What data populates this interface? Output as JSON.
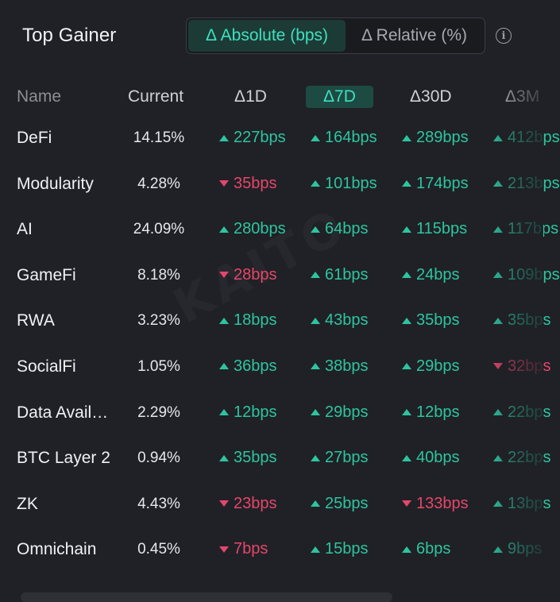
{
  "header": {
    "title": "Top Gainer",
    "toggle": {
      "active": "Δ Absolute (bps)",
      "inactive": "Δ Relative (%)"
    },
    "info_icon": "info-icon"
  },
  "table": {
    "columns": [
      "Name",
      "Current",
      "Δ1D",
      "Δ7D",
      "Δ30D",
      "Δ3M"
    ],
    "active_column": "Δ7D",
    "rows": [
      {
        "name": "DeFi",
        "current": "14.15%",
        "changes": [
          {
            "v": "227bps",
            "dir": "up"
          },
          {
            "v": "164bps",
            "dir": "up"
          },
          {
            "v": "289bps",
            "dir": "up"
          },
          {
            "v": "412bps",
            "dir": "up"
          }
        ]
      },
      {
        "name": "Modularity",
        "current": "4.28%",
        "changes": [
          {
            "v": "35bps",
            "dir": "down"
          },
          {
            "v": "101bps",
            "dir": "up"
          },
          {
            "v": "174bps",
            "dir": "up"
          },
          {
            "v": "213bps",
            "dir": "up"
          }
        ]
      },
      {
        "name": "AI",
        "current": "24.09%",
        "changes": [
          {
            "v": "280bps",
            "dir": "up"
          },
          {
            "v": "64bps",
            "dir": "up"
          },
          {
            "v": "115bps",
            "dir": "up"
          },
          {
            "v": "117bps",
            "dir": "up"
          }
        ]
      },
      {
        "name": "GameFi",
        "current": "8.18%",
        "changes": [
          {
            "v": "28bps",
            "dir": "down"
          },
          {
            "v": "61bps",
            "dir": "up"
          },
          {
            "v": "24bps",
            "dir": "up"
          },
          {
            "v": "109bps",
            "dir": "up"
          }
        ]
      },
      {
        "name": "RWA",
        "current": "3.23%",
        "changes": [
          {
            "v": "18bps",
            "dir": "up"
          },
          {
            "v": "43bps",
            "dir": "up"
          },
          {
            "v": "35bps",
            "dir": "up"
          },
          {
            "v": "35bps",
            "dir": "up"
          }
        ]
      },
      {
        "name": "SocialFi",
        "current": "1.05%",
        "changes": [
          {
            "v": "36bps",
            "dir": "up"
          },
          {
            "v": "38bps",
            "dir": "up"
          },
          {
            "v": "29bps",
            "dir": "up"
          },
          {
            "v": "32bps",
            "dir": "down"
          }
        ]
      },
      {
        "name": "Data Avail…",
        "current": "2.29%",
        "changes": [
          {
            "v": "12bps",
            "dir": "up"
          },
          {
            "v": "29bps",
            "dir": "up"
          },
          {
            "v": "12bps",
            "dir": "up"
          },
          {
            "v": "22bps",
            "dir": "up"
          }
        ]
      },
      {
        "name": "BTC Layer 2",
        "current": "0.94%",
        "changes": [
          {
            "v": "35bps",
            "dir": "up"
          },
          {
            "v": "27bps",
            "dir": "up"
          },
          {
            "v": "40bps",
            "dir": "up"
          },
          {
            "v": "22bps",
            "dir": "up"
          }
        ]
      },
      {
        "name": "ZK",
        "current": "4.43%",
        "changes": [
          {
            "v": "23bps",
            "dir": "down"
          },
          {
            "v": "25bps",
            "dir": "up"
          },
          {
            "v": "133bps",
            "dir": "down"
          },
          {
            "v": "13bps",
            "dir": "up"
          }
        ]
      },
      {
        "name": "Omnichain",
        "current": "0.45%",
        "changes": [
          {
            "v": "7bps",
            "dir": "down"
          },
          {
            "v": "15bps",
            "dir": "up"
          },
          {
            "v": "6bps",
            "dir": "up"
          },
          {
            "v": "9bps",
            "dir": "up"
          }
        ]
      }
    ]
  },
  "watermark": "KAITO",
  "colors": {
    "up": "#2ec4a0",
    "down": "#e6466a",
    "accent": "#3ee0c0",
    "background": "#1f2126"
  }
}
